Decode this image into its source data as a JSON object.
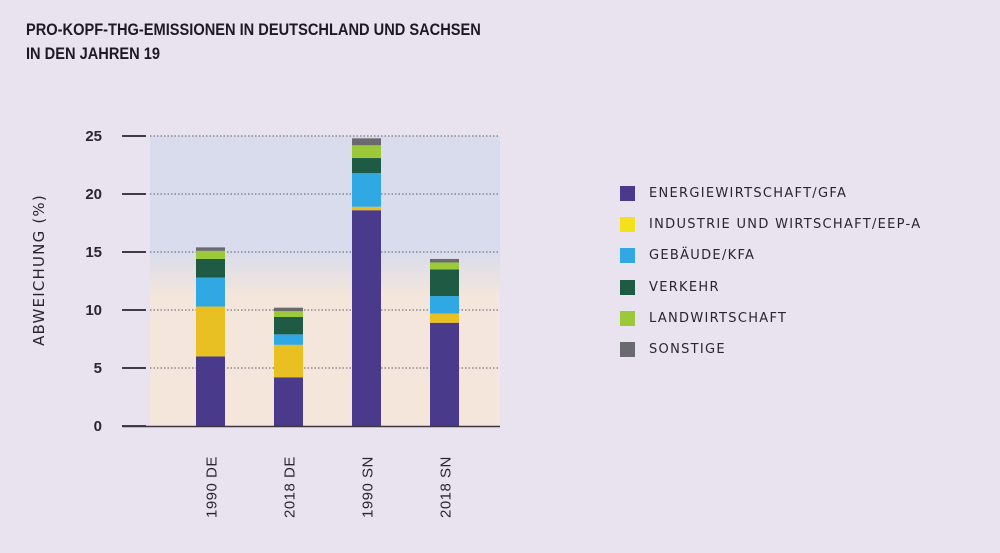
{
  "title_line1": "PRO-KOPF-THG-EMISSIONEN IN DEUTSCHLAND UND SACHSEN",
  "title_line2": "IN DEN JAHREN 19",
  "colors": {
    "page_background": "#e8e3ee",
    "plot_top": "#d6dbec",
    "plot_bottom": "#f6e6d8"
  },
  "chart_data": {
    "type": "bar",
    "stacked": true,
    "title": "PRO-KOPF-THG-EMISSIONEN IN DEUTSCHLAND UND SACHSEN IN DEN JAHREN 19",
    "xlabel": "",
    "ylabel": "ABWEICHUNG (%)",
    "ylim": [
      0,
      25
    ],
    "yticks": [
      0,
      5,
      10,
      15,
      20,
      25
    ],
    "grid": true,
    "legend_position": "right",
    "categories": [
      "1990 DE",
      "2018 DE",
      "1990 SN",
      "2018 SN"
    ],
    "series": [
      {
        "name": "ENERGIEWIRTSCHAFT/GFA",
        "color": "#4a3a8c",
        "legend_color": "#4a3a8c",
        "values": [
          6.0,
          4.2,
          18.6,
          8.9
        ]
      },
      {
        "name": "INDUSTRIE UND WIRTSCHAFT/EEP-A",
        "color": "#e9c021",
        "legend_color": "#f3e11c",
        "values": [
          4.3,
          2.8,
          0.3,
          0.8
        ]
      },
      {
        "name": "GEBÄUDE/KFA",
        "color": "#2fa8e4",
        "legend_color": "#2fa8e4",
        "values": [
          2.5,
          0.9,
          2.9,
          1.5
        ]
      },
      {
        "name": "VERKEHR",
        "color": "#1e5a44",
        "legend_color": "#1e5a44",
        "values": [
          1.6,
          1.5,
          1.3,
          2.3
        ]
      },
      {
        "name": "LANDWIRTSCHAFT",
        "color": "#9cc93a",
        "legend_color": "#9cc93a",
        "values": [
          0.7,
          0.5,
          1.1,
          0.6
        ]
      },
      {
        "name": "SONSTIGE",
        "color": "#6a6a6e",
        "legend_color": "#6a6a6e",
        "values": [
          0.3,
          0.3,
          0.6,
          0.3
        ]
      }
    ]
  }
}
